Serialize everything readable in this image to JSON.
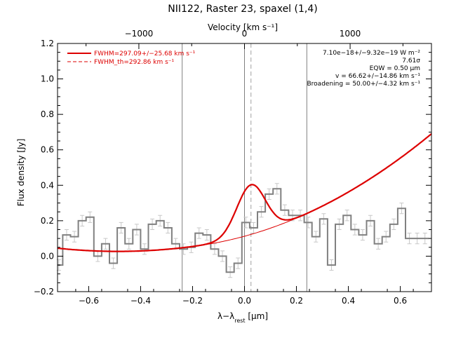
{
  "chart_data": {
    "type": "line",
    "title": "NII122, Raster 23, spaxel (1,4)",
    "xlabel": "λ−λrest [μm]",
    "xlabel_main": "λ−λ",
    "xlabel_sub": "rest",
    "xlabel_unit": " [μm]",
    "ylabel": "Flux density [Jy]",
    "top_axis_label": "Velocity [km s⁻¹]",
    "xlim": [
      -0.72,
      0.72
    ],
    "ylim": [
      -0.2,
      1.2
    ],
    "top_xlim": [
      -1770,
      1770
    ],
    "x_ticks": [
      "−0.6",
      "−0.4",
      "−0.2",
      "0.0",
      "0.2",
      "0.4",
      "0.6"
    ],
    "x_tick_values": [
      -0.6,
      -0.4,
      -0.2,
      0.0,
      0.2,
      0.4,
      0.6
    ],
    "y_ticks": [
      "−0.2",
      "0.0",
      "0.2",
      "0.4",
      "0.6",
      "0.8",
      "1.0",
      "1.2"
    ],
    "y_tick_values": [
      -0.2,
      0.0,
      0.2,
      0.4,
      0.6,
      0.8,
      1.0,
      1.2
    ],
    "top_ticks": [
      "−1000",
      "0",
      "1000"
    ],
    "top_tick_values": [
      -1000,
      0,
      1000
    ],
    "legend": [
      {
        "label": "FWHM=297.09+/−25.68 km s⁻¹",
        "style": "solid",
        "color": "#dd0000"
      },
      {
        "label": "FWHM_th=292.86 km s⁻¹",
        "style": "dashed",
        "color": "#dd0000"
      }
    ],
    "annotations": [
      "7.10e−18+/−9.32e−19 W m⁻²",
      "7.61σ",
      "EQW = 0.50 μm",
      "v = 66.62+/−14.86 km s⁻¹",
      "Broadening = 50.00+/−4.32 km s⁻¹"
    ],
    "vertical_lines": {
      "solid": [
        -0.24,
        0.0,
        0.24
      ],
      "dashed": [
        0.025
      ]
    },
    "series": [
      {
        "kind": "histogram",
        "color": "#808080",
        "x": [
          -0.715,
          -0.685,
          -0.655,
          -0.625,
          -0.595,
          -0.565,
          -0.535,
          -0.505,
          -0.475,
          -0.445,
          -0.415,
          -0.385,
          -0.355,
          -0.325,
          -0.295,
          -0.265,
          -0.235,
          -0.205,
          -0.175,
          -0.145,
          -0.115,
          -0.085,
          -0.055,
          -0.025,
          0.005,
          0.035,
          0.065,
          0.095,
          0.125,
          0.155,
          0.185,
          0.215,
          0.245,
          0.275,
          0.305,
          0.335,
          0.365,
          0.395,
          0.425,
          0.455,
          0.485,
          0.515,
          0.545,
          0.575,
          0.605,
          0.635,
          0.665,
          0.695
        ],
        "y": [
          -0.05,
          0.12,
          0.11,
          0.2,
          0.22,
          0.0,
          0.07,
          -0.04,
          0.16,
          0.07,
          0.15,
          0.04,
          0.18,
          0.2,
          0.16,
          0.07,
          0.04,
          0.05,
          0.13,
          0.12,
          0.04,
          0.0,
          -0.09,
          -0.04,
          0.19,
          0.16,
          0.25,
          0.35,
          0.38,
          0.26,
          0.23,
          0.23,
          0.19,
          0.11,
          0.21,
          -0.05,
          0.18,
          0.23,
          0.15,
          0.12,
          0.2,
          0.07,
          0.11,
          0.18,
          0.27,
          0.1,
          0.1,
          0.1
        ]
      },
      {
        "kind": "model",
        "name": "fit",
        "color": "#dd0000",
        "continuum": {
          "a": 0.063,
          "b": 0.22,
          "c": 0.56,
          "x0": -0.16
        },
        "gaussian": {
          "amplitude": 0.28,
          "center": 0.025,
          "sigma": 0.055
        }
      }
    ]
  }
}
